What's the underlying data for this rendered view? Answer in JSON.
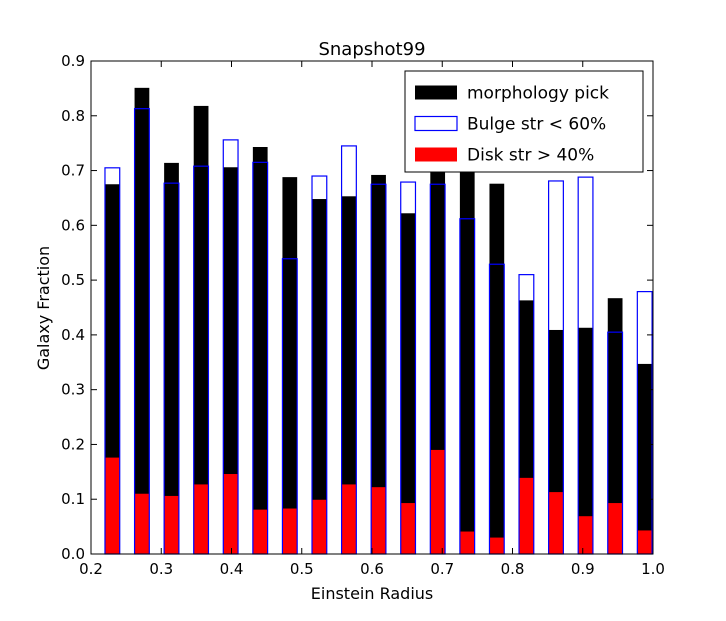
{
  "chart_data": {
    "type": "bar",
    "title": "Snapshot99",
    "xlabel": "Einstein Radius",
    "ylabel": "Galaxy Fraction",
    "xlim": [
      0.2,
      1.0
    ],
    "ylim": [
      0.0,
      0.9
    ],
    "xticks": [
      "0.2",
      "0.3",
      "0.4",
      "0.5",
      "0.6",
      "0.7",
      "0.8",
      "0.9",
      "1.0"
    ],
    "yticks": [
      "0.0",
      "0.1",
      "0.2",
      "0.3",
      "0.4",
      "0.5",
      "0.6",
      "0.7",
      "0.8",
      "0.9"
    ],
    "grid": false,
    "legend_position": "top-right",
    "x": [
      0.2304,
      0.2725,
      0.3146,
      0.3567,
      0.3988,
      0.4409,
      0.483,
      0.5251,
      0.5672,
      0.6093,
      0.6514,
      0.6935,
      0.7356,
      0.7777,
      0.8198,
      0.8619,
      0.904,
      0.9461,
      0.9882
    ],
    "bar_width": 0.021,
    "series": [
      {
        "name": "morphology pick",
        "style": "filled",
        "color": "#000000",
        "values": [
          0.675,
          0.851,
          0.714,
          0.818,
          0.706,
          0.743,
          0.688,
          0.648,
          0.653,
          0.692,
          0.622,
          0.772,
          0.773,
          0.676,
          0.463,
          0.409,
          0.413,
          0.467,
          0.347
        ]
      },
      {
        "name": "Bulge str < 60%",
        "style": "outline",
        "color": "#0000ff",
        "values": [
          0.705,
          0.813,
          0.677,
          0.708,
          0.756,
          0.715,
          0.539,
          0.69,
          0.745,
          0.675,
          0.679,
          0.675,
          0.612,
          0.529,
          0.51,
          0.681,
          0.688,
          0.405,
          0.479
        ]
      },
      {
        "name": "Disk str > 40%",
        "style": "filled",
        "color": "#ff0000",
        "values": [
          0.176,
          0.11,
          0.106,
          0.127,
          0.146,
          0.081,
          0.083,
          0.099,
          0.127,
          0.122,
          0.093,
          0.19,
          0.041,
          0.03,
          0.139,
          0.113,
          0.069,
          0.093,
          0.043
        ]
      }
    ]
  }
}
